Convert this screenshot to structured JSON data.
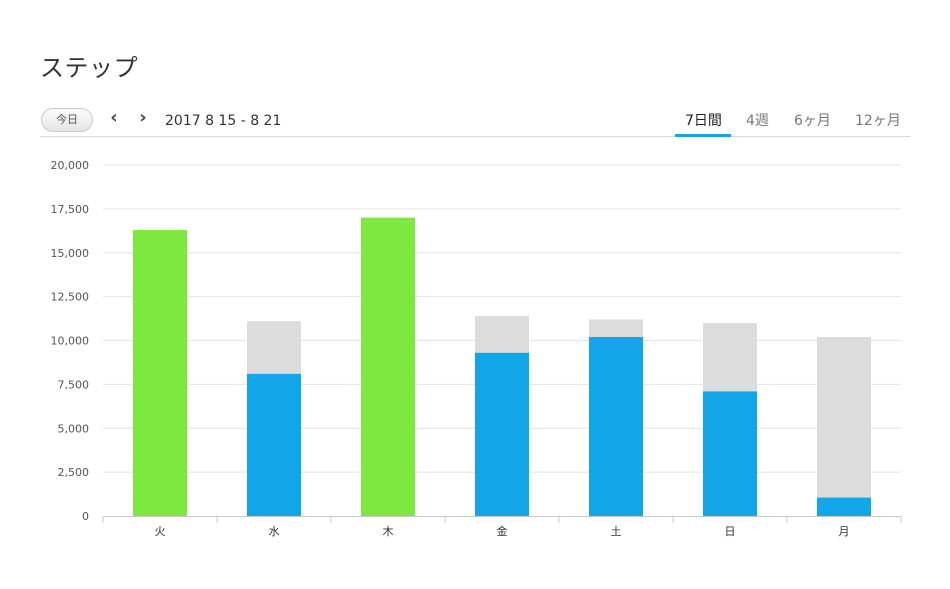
{
  "header": {
    "title": "ステップ"
  },
  "toolbar": {
    "today_label": "今日",
    "prev_icon": "chevron-left-icon",
    "next_icon": "chevron-right-icon",
    "date_range": "2017 8 15 - 8 21",
    "tabs": [
      {
        "label": "7日間",
        "active": true
      },
      {
        "label": "4週",
        "active": false
      },
      {
        "label": "6ヶ月",
        "active": false
      },
      {
        "label": "12ヶ月",
        "active": false
      }
    ]
  },
  "colors": {
    "goal_reached": "#7de83f",
    "steps": "#12a5e8",
    "goal": "#dcdcdc",
    "accent": "#1aa3e8"
  },
  "chart_data": {
    "type": "bar",
    "categories": [
      "火",
      "水",
      "木",
      "金",
      "土",
      "日",
      "月"
    ],
    "y_ticks": [
      "0",
      "2,500",
      "5,000",
      "7,500",
      "10,000",
      "12,500",
      "15,000",
      "17,500",
      "20,000"
    ],
    "ylim": [
      0,
      20000
    ],
    "grid": true,
    "series": [
      {
        "values": [
          16300,
          8100,
          17000,
          9300,
          10200,
          7100,
          1050
        ]
      },
      {
        "values": [
          0,
          11100,
          0,
          11400,
          11200,
          11000,
          10200
        ]
      }
    ]
  }
}
